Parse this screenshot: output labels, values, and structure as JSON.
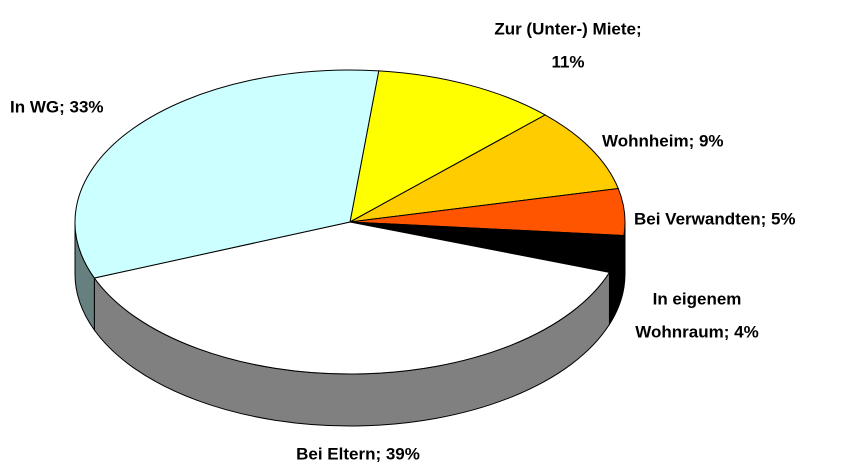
{
  "chart_data": {
    "type": "pie3d",
    "values": [
      11,
      9,
      5,
      4,
      39,
      33
    ],
    "value_labels": [
      [
        "Zur (Unter-) Miete;",
        "11%"
      ],
      [
        "Wohnheim; 9%"
      ],
      [
        "Bei Verwandten; 5%"
      ],
      [
        "In eigenem",
        "Wohnraum; 4%"
      ],
      [
        "Bei Eltern; 39%"
      ],
      [
        "In WG; 33%"
      ]
    ],
    "colors": [
      "#ffff00",
      "#ffcc00",
      "#ff5500",
      "#000000",
      "#ffffff",
      "#ccffff"
    ]
  }
}
